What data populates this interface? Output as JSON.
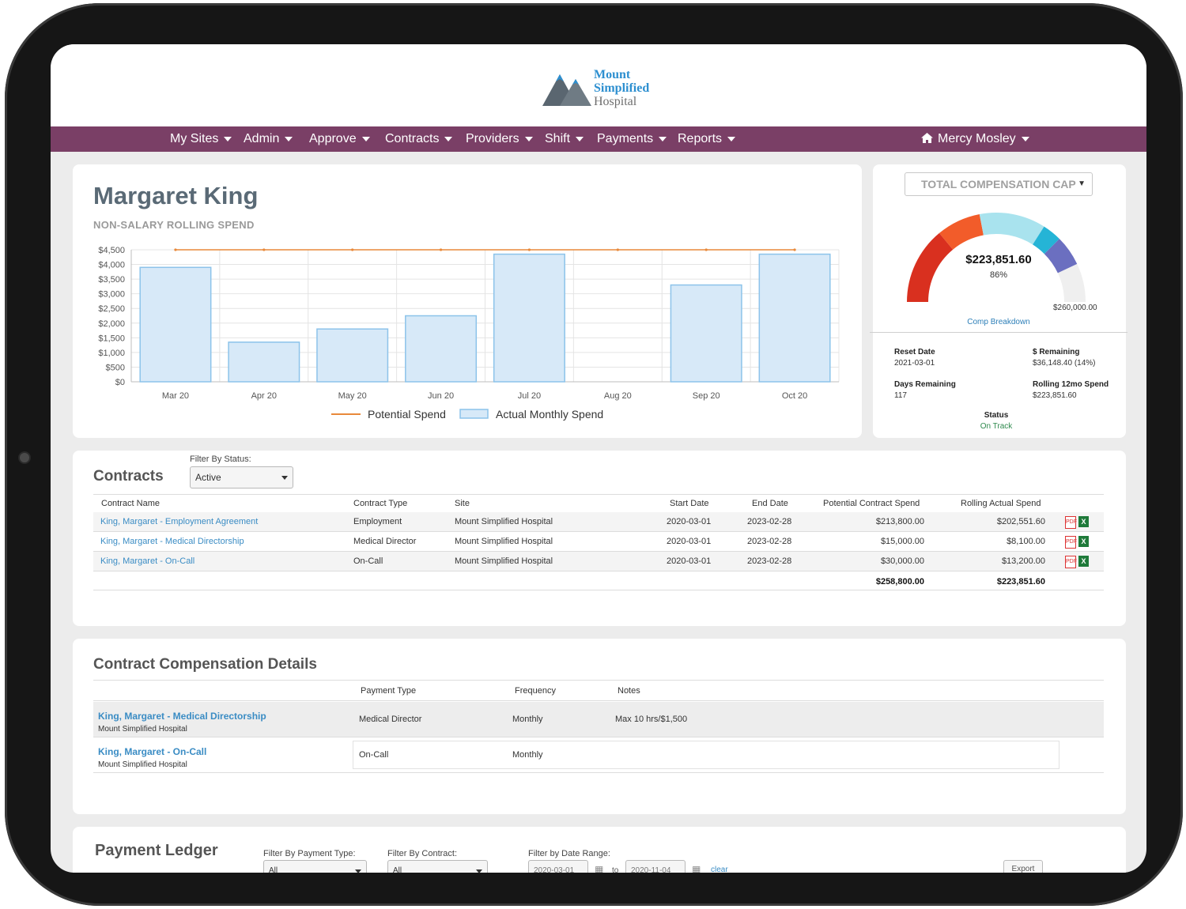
{
  "logo": {
    "line1": "Mount",
    "line2": "Simplified",
    "line3": "Hospital"
  },
  "nav": {
    "items": [
      "My Sites",
      "Admin",
      "Approve",
      "Contracts",
      "Providers",
      "Shift",
      "Payments",
      "Reports"
    ],
    "user": "Mercy Mosley"
  },
  "profile": {
    "name": "Margaret King",
    "subtitle": "NON-SALARY ROLLING SPEND"
  },
  "chart_data": {
    "type": "bar",
    "categories": [
      "Mar 20",
      "Apr 20",
      "May 20",
      "Jun 20",
      "Jul 20",
      "Aug 20",
      "Sep 20",
      "Oct 20"
    ],
    "series": [
      {
        "name": "Actual Monthly Spend",
        "type": "bar",
        "values": [
          3900,
          1350,
          1800,
          2250,
          4350,
          0,
          3300,
          4350
        ]
      },
      {
        "name": "Potential Spend",
        "type": "line",
        "values": [
          4500,
          4500,
          4500,
          4500,
          4500,
          4500,
          4500,
          4500
        ]
      }
    ],
    "yticks": [
      "$0",
      "$500",
      "$1,000",
      "$1,500",
      "$2,000",
      "$2,500",
      "$3,000",
      "$3,500",
      "$4,000",
      "$4,500"
    ],
    "ylim": [
      0,
      4500
    ],
    "grid": true,
    "legend_position": "bottom",
    "colors": {
      "bar_fill": "#d7e9f8",
      "bar_stroke": "#8cc3ea",
      "line": "#e8893a"
    }
  },
  "comp_cap": {
    "selector": "TOTAL COMPENSATION CAP",
    "amount": "$223,851.60",
    "percent": "86%",
    "percent_value": 86,
    "max": "$260,000.00",
    "link": "Comp Breakdown",
    "stats": {
      "reset_date_label": "Reset Date",
      "reset_date": "2021-03-01",
      "remaining_label": "$ Remaining",
      "remaining": "$36,148.40 (14%)",
      "days_label": "Days Remaining",
      "days": "117",
      "rolling_label": "Rolling 12mo Spend",
      "rolling": "$223,851.60",
      "status_label": "Status",
      "status": "On Track"
    }
  },
  "contracts": {
    "title": "Contracts",
    "filter_label": "Filter By Status:",
    "filter_value": "Active",
    "headers": [
      "Contract Name",
      "Contract Type",
      "Site",
      "Start Date",
      "End Date",
      "Potential Contract Spend",
      "Rolling Actual Spend"
    ],
    "rows": [
      {
        "name": "King, Margaret - Employment Agreement",
        "type": "Employment",
        "site": "Mount Simplified Hospital",
        "start": "2020-03-01",
        "end": "2023-02-28",
        "potential": "$213,800.00",
        "actual": "$202,551.60"
      },
      {
        "name": "King, Margaret - Medical Directorship",
        "type": "Medical Director",
        "site": "Mount Simplified Hospital",
        "start": "2020-03-01",
        "end": "2023-02-28",
        "potential": "$15,000.00",
        "actual": "$8,100.00"
      },
      {
        "name": "King, Margaret - On-Call",
        "type": "On-Call",
        "site": "Mount Simplified Hospital",
        "start": "2020-03-01",
        "end": "2023-02-28",
        "potential": "$30,000.00",
        "actual": "$13,200.00"
      }
    ],
    "total_potential": "$258,800.00",
    "total_actual": "$223,851.60",
    "icons": {
      "pdf": "PDF",
      "xls": "X"
    }
  },
  "comp_details": {
    "title": "Contract Compensation Details",
    "headers": [
      "Payment Type",
      "Frequency",
      "Notes"
    ],
    "rows": [
      {
        "contract": "King, Margaret - Medical Directorship",
        "site": "Mount Simplified Hospital",
        "payment_type": "Medical Director",
        "frequency": "Monthly",
        "notes": "Max 10 hrs/$1,500"
      },
      {
        "contract": "King, Margaret - On-Call",
        "site": "Mount Simplified Hospital",
        "payment_type": "On-Call",
        "frequency": "Monthly",
        "notes": ""
      }
    ]
  },
  "ledger": {
    "title": "Payment Ledger",
    "filter_type_label": "Filter By Payment Type:",
    "filter_type_value": "All",
    "filter_contract_label": "Filter By Contract:",
    "filter_contract_value": "All",
    "filter_date_label": "Filter by Date Range:",
    "date_from": "2020-03-01",
    "date_to_word": "to",
    "date_to": "2020-11-04",
    "clear": "clear",
    "export": "Export"
  }
}
